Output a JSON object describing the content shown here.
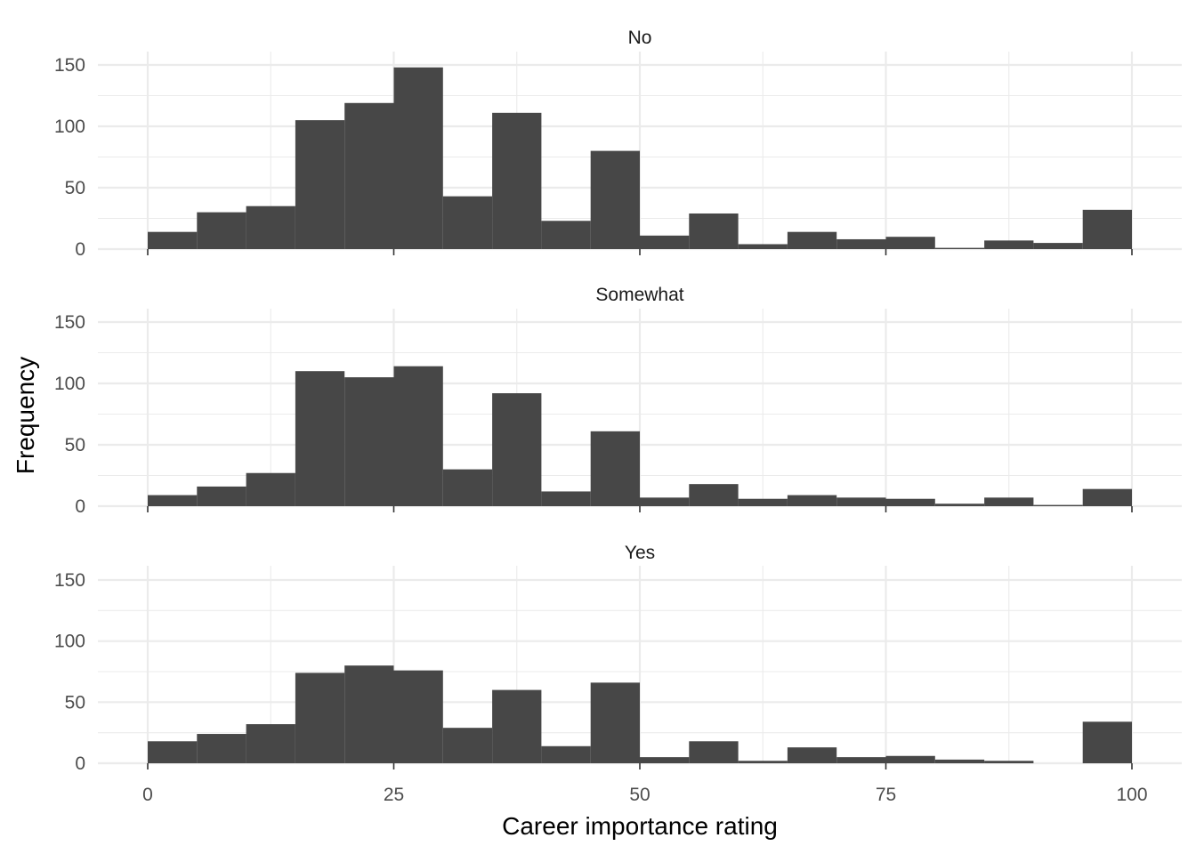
{
  "chart_data": {
    "type": "bar",
    "subtype": "faceted-histogram",
    "xlabel": "Career importance rating",
    "ylabel": "Frequency",
    "xlim": [
      0,
      100
    ],
    "ylim": [
      0,
      150
    ],
    "x_ticks": [
      0,
      25,
      50,
      75,
      100
    ],
    "y_ticks": [
      0,
      50,
      100,
      150
    ],
    "bin_width": 5,
    "bins": [
      [
        0,
        5
      ],
      [
        5,
        10
      ],
      [
        10,
        15
      ],
      [
        15,
        20
      ],
      [
        20,
        25
      ],
      [
        25,
        30
      ],
      [
        30,
        35
      ],
      [
        35,
        40
      ],
      [
        40,
        45
      ],
      [
        45,
        50
      ],
      [
        50,
        55
      ],
      [
        55,
        60
      ],
      [
        60,
        65
      ],
      [
        65,
        70
      ],
      [
        70,
        75
      ],
      [
        75,
        80
      ],
      [
        80,
        85
      ],
      [
        85,
        90
      ],
      [
        90,
        95
      ],
      [
        95,
        100
      ]
    ],
    "bar_color": "#474747",
    "grid": true,
    "facets": [
      {
        "label": "No",
        "values": [
          14,
          30,
          35,
          105,
          119,
          148,
          43,
          111,
          23,
          80,
          11,
          29,
          4,
          14,
          8,
          10,
          1,
          7,
          5,
          32
        ]
      },
      {
        "label": "Somewhat",
        "values": [
          9,
          16,
          27,
          110,
          105,
          114,
          30,
          92,
          12,
          61,
          7,
          18,
          6,
          9,
          7,
          6,
          2,
          7,
          1,
          14
        ]
      },
      {
        "label": "Yes",
        "values": [
          18,
          24,
          32,
          74,
          80,
          76,
          29,
          60,
          14,
          66,
          5,
          18,
          2,
          13,
          5,
          6,
          3,
          2,
          0,
          34
        ]
      }
    ]
  }
}
